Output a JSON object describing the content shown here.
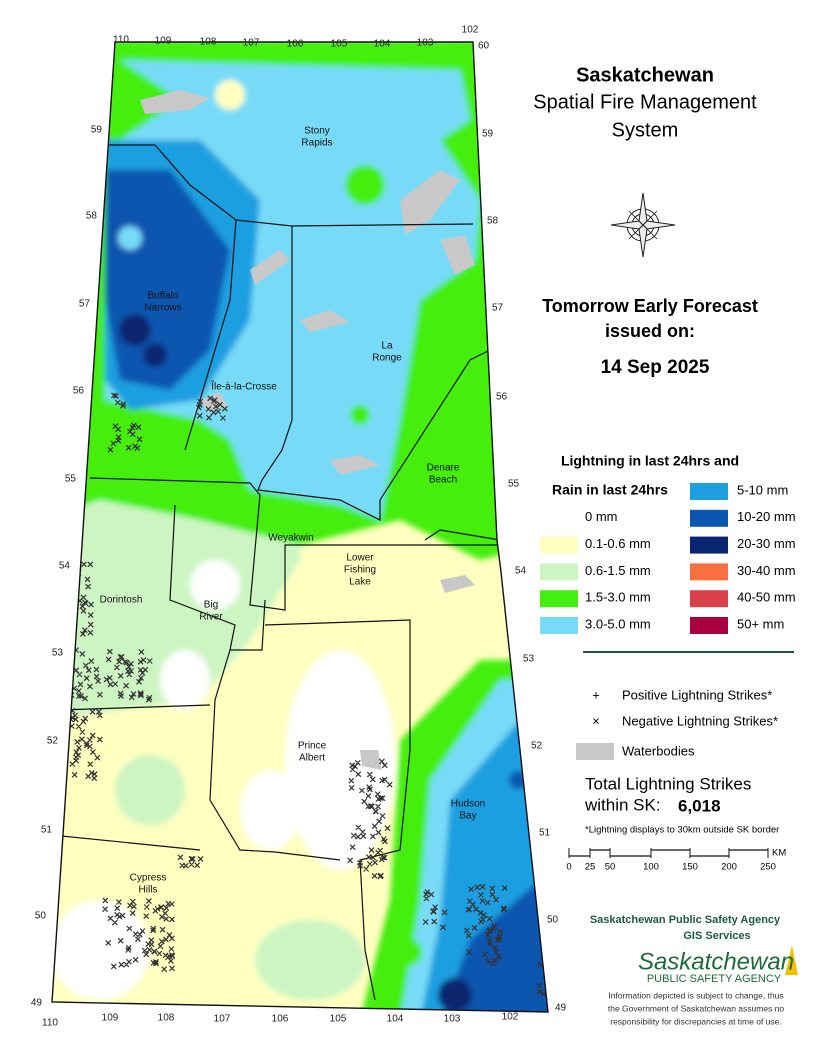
{
  "header": {
    "title": "Saskatchewan",
    "subtitle_lines": [
      "Spatial Fire Management",
      "System"
    ]
  },
  "forecast": {
    "heading": "Tomorrow Early Forecast",
    "issued": "issued on:",
    "date": "14 Sep 2025"
  },
  "map": {
    "longitudes": [
      110,
      109,
      108,
      107,
      106,
      105,
      104,
      103,
      102
    ],
    "latitudes": [
      60,
      59,
      58,
      57,
      56,
      55,
      54,
      53,
      52,
      51,
      50,
      49
    ],
    "places": [
      {
        "lines": [
          "Stony",
          "Rapids"
        ]
      },
      {
        "lines": [
          "Buffalo",
          "Narrows"
        ]
      },
      {
        "lines": [
          "La",
          "Ronge"
        ]
      },
      {
        "lines": [
          "Île-à-la-Crosse"
        ]
      },
      {
        "lines": [
          "Denare",
          "Beach"
        ]
      },
      {
        "lines": [
          "Weyakwin"
        ]
      },
      {
        "lines": [
          "Lower",
          "Fishing",
          "Lake"
        ]
      },
      {
        "lines": [
          "Dorintosh"
        ]
      },
      {
        "lines": [
          "Big",
          "River"
        ]
      },
      {
        "lines": [
          "Prince",
          "Albert"
        ]
      },
      {
        "lines": [
          "Hudson",
          "Bay"
        ]
      },
      {
        "lines": [
          "Cypress",
          "Hills"
        ]
      }
    ]
  },
  "legend": {
    "lightning_title": "Lightning in last 24hrs and",
    "rain_title": "Rain in last 24hrs",
    "rain_classes": [
      {
        "label": "0 mm",
        "color": "#ffffff"
      },
      {
        "label": "0.1-0.6 mm",
        "color": "#ffffc0"
      },
      {
        "label": "0.6-1.5 mm",
        "color": "#ccf5c2"
      },
      {
        "label": "1.5-3.0 mm",
        "color": "#44ee11"
      },
      {
        "label": "3.0-5.0 mm",
        "color": "#77dbf7"
      },
      {
        "label": "5-10 mm",
        "color": "#1e9fe0"
      },
      {
        "label": "10-20 mm",
        "color": "#0a56b0"
      },
      {
        "label": "20-30 mm",
        "color": "#0a2670"
      },
      {
        "label": "30-40 mm",
        "color": "#f97040"
      },
      {
        "label": "40-50 mm",
        "color": "#d8404a"
      },
      {
        "label": "50+ mm",
        "color": "#a80040"
      }
    ],
    "symbols": [
      {
        "symbol": "+",
        "label": "Positive Lightning Strikes*"
      },
      {
        "symbol": "×",
        "label": "Negative Lightning Strikes*"
      },
      {
        "label": "Waterbodies"
      }
    ]
  },
  "totals": {
    "label_lines": [
      "Total Lightning Strikes",
      "within SK:"
    ],
    "value": "6,018",
    "footnote": "*Lightning displays to 30km outside SK border"
  },
  "scale": {
    "ticks": [
      "0",
      "25",
      "50",
      "100",
      "150",
      "200",
      "250"
    ],
    "unit": "KM"
  },
  "agency": {
    "name": "Saskatchewan Public Safety Agency",
    "unit": "GIS  Services",
    "logo_name": "Saskatchewan",
    "logo_sub": "PUBLIC SAFETY AGENCY",
    "disclaimer_lines": [
      "Information depicted is subject to change, thus",
      "the Government of Saskatchewan assumes no",
      "responsibility for discrepancies at time of use."
    ]
  }
}
